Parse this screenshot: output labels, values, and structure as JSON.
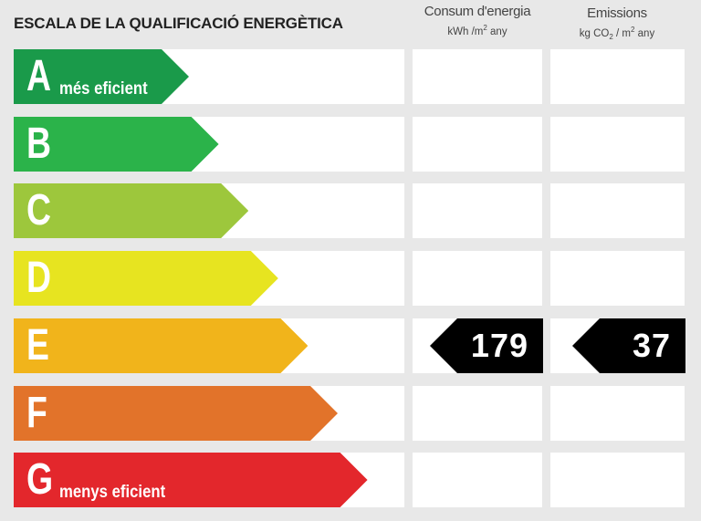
{
  "title": "ESCALA DE LA QUALIFICACIÓ ENERGÈTICA",
  "columns": {
    "consum": {
      "label": "Consum d'energia",
      "unit_pre": "kWh /m",
      "unit_sup": "2",
      "unit_post": " any"
    },
    "emissions": {
      "label": "Emissions",
      "unit_pre": "kg CO",
      "unit_sub": "2",
      "unit_mid": " / m",
      "unit_sup": "2",
      "unit_post": " any"
    }
  },
  "classes": [
    {
      "letter": "A",
      "sub": "més eficient",
      "color": "#1a9a4a"
    },
    {
      "letter": "B",
      "sub": "",
      "color": "#2bb34a"
    },
    {
      "letter": "C",
      "sub": "",
      "color": "#9dc73c"
    },
    {
      "letter": "D",
      "sub": "",
      "color": "#e7e420"
    },
    {
      "letter": "E",
      "sub": "",
      "color": "#f1b41b"
    },
    {
      "letter": "F",
      "sub": "",
      "color": "#e2732a"
    },
    {
      "letter": "G",
      "sub": "menys eficient",
      "color": "#e3272c"
    }
  ],
  "rating": {
    "class": "E",
    "consum": "179",
    "emissions": "37"
  }
}
